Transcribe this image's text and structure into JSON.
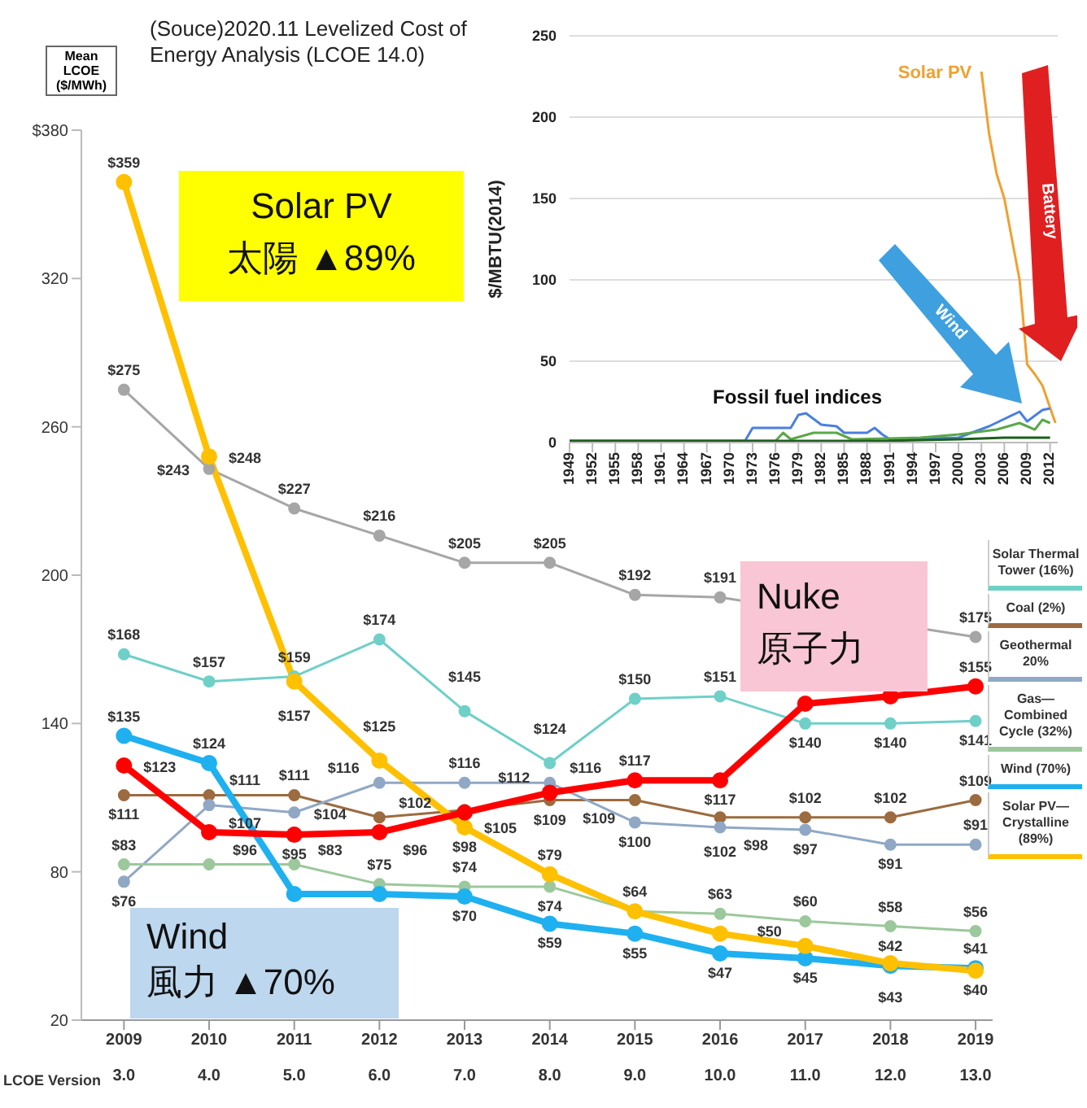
{
  "chart_data": [
    {
      "type": "line",
      "title": "(Souce)2020.11 Levelized Cost of Energy Analysis (LCOE 14.0)",
      "ylabel": "Mean LCOE ($/MWh)",
      "x2label": "LCOE Version",
      "x": [
        2009,
        2010,
        2011,
        2012,
        2013,
        2014,
        2015,
        2016,
        2017,
        2018,
        2019
      ],
      "xlim": [
        2008.5,
        2019.2
      ],
      "xticks": [
        2009,
        2010,
        2011,
        2012,
        2013,
        2014,
        2015,
        2016,
        2017,
        2018,
        2019
      ],
      "x2lim": [
        2.5,
        13.2
      ],
      "x2ticks": [
        {
          "value": 3,
          "label": "3.0"
        },
        {
          "value": 4,
          "label": "4.0"
        },
        {
          "value": 5,
          "label": "5.0"
        },
        {
          "value": 6,
          "label": "6.0"
        },
        {
          "value": 7,
          "label": "7.0"
        },
        {
          "value": 8,
          "label": "8.0"
        },
        {
          "value": 9,
          "label": "9.0"
        },
        {
          "value": 10,
          "label": "10.0"
        },
        {
          "value": 11,
          "label": "11.0"
        },
        {
          "value": 12,
          "label": "12.0"
        },
        {
          "value": 13,
          "label": "13.0"
        }
      ],
      "ylim": [
        20,
        380
      ],
      "yticks": [
        20,
        80,
        140,
        200,
        260,
        320,
        {
          "value": 380,
          "label": "$380"
        }
      ],
      "grid": false,
      "legend": "right",
      "marker": "circle",
      "annotations": [
        "Solar PV\n太陽 ▲89%",
        "Wind\n風力 ▲70%",
        "Nuke\n原子力"
      ],
      "series": [
        {
          "color": "#a6a6a6",
          "values": [
            275,
            243,
            227,
            216,
            205,
            205,
            192,
            191,
            null,
            null,
            175
          ],
          "value_labels": [
            "$275",
            "$243",
            "$227",
            "$216",
            "$205",
            "$205",
            "$192",
            "$191",
            null,
            null,
            "$175"
          ]
        },
        {
          "name": "Solar Thermal Tower (16%)",
          "color": "#6fd0c8",
          "values": [
            168,
            157,
            159,
            174,
            145,
            124,
            150,
            151,
            140,
            140,
            141
          ],
          "value_labels": [
            "$168",
            "$157",
            "$159",
            "$174",
            "$145",
            "$124",
            "$150",
            "$151",
            "$140",
            "$140",
            "$141"
          ]
        },
        {
          "name": "Coal (2%)",
          "color": "#9c6b3f",
          "values": [
            111,
            111,
            111,
            102,
            105,
            109,
            109,
            102,
            102,
            102,
            109
          ],
          "value_labels": [
            "$111",
            "$111",
            "$111",
            "$102",
            "$105",
            "$109",
            "$109",
            "$102",
            "$102",
            "$102",
            "$109"
          ]
        },
        {
          "name": "Geothermal 20%",
          "color": "#90a8c4",
          "values": [
            76,
            107,
            104,
            116,
            116,
            116,
            100,
            98,
            97,
            91,
            91
          ],
          "value_labels": [
            "$76",
            "$107",
            "$104",
            "$116",
            "$116",
            "$116",
            "$100",
            "$98",
            "$97",
            "$91",
            "$91"
          ]
        },
        {
          "name": "Gas—Combined Cycle (32%)",
          "color": "#9cc89c",
          "values": [
            83,
            83,
            83,
            75,
            74,
            74,
            64,
            63,
            60,
            58,
            56
          ],
          "value_labels": [
            "$83",
            null,
            "$83",
            "$75",
            "$74",
            "$74",
            "$64",
            "$63",
            "$60",
            "$58",
            "$56"
          ]
        },
        {
          "name": "Wind (70%)",
          "color": "#1fb0f0",
          "values": [
            135,
            124,
            71,
            71,
            70,
            59,
            55,
            47,
            45,
            42,
            41
          ],
          "value_labels": [
            "$135",
            "$124",
            null,
            null,
            "$70",
            "$59",
            "$55",
            "$47",
            "$45",
            "$42",
            "$41"
          ]
        },
        {
          "name": "Solar PV—Crystalline (89%)",
          "color": "#ffc000",
          "values": [
            359,
            248,
            157,
            125,
            98,
            79,
            64,
            55,
            50,
            43,
            40
          ],
          "value_labels": [
            "$359",
            "$248",
            "$157",
            "$125",
            "$98",
            "$79",
            null,
            null,
            "$50",
            "$43",
            "$40"
          ]
        },
        {
          "color": "#ff0000",
          "values": [
            123,
            96,
            95,
            96,
            104,
            112,
            117,
            117,
            148,
            151,
            155
          ],
          "value_labels": [
            "$123",
            "$96",
            "$95",
            "$96",
            null,
            "$112",
            "$117",
            "$117",
            null,
            null,
            "$155"
          ]
        }
      ]
    },
    {
      "type": "line",
      "ylabel": "$/MBTU(2014)",
      "xlim": [
        1949,
        2013
      ],
      "xticks": [
        1949,
        1952,
        1955,
        1958,
        1961,
        1964,
        1967,
        1970,
        1973,
        1976,
        1979,
        1982,
        1985,
        1988,
        1991,
        1994,
        1997,
        2000,
        2003,
        2006,
        2009,
        2012
      ],
      "ylim": [
        0,
        250
      ],
      "yticks": [
        0,
        50,
        100,
        150,
        200,
        250
      ],
      "grid": "y",
      "legend": false,
      "annotations": [
        "Fossil fuel indices",
        "Wind",
        "Battery"
      ],
      "series": [
        {
          "name": "Solar PV",
          "color": "#f0a030",
          "x": [
            2003,
            2004,
            2005,
            2006,
            2007,
            2008,
            2009,
            2010,
            2011,
            2012.7
          ],
          "values": [
            228,
            190,
            165,
            150,
            125,
            100,
            48,
            42,
            35,
            12
          ]
        },
        {
          "color": "#4a7fe0",
          "x": [
            1949,
            1972,
            1973,
            1978,
            1979,
            1980,
            1982,
            1984,
            1985,
            1988,
            1989,
            1990,
            1991,
            2000,
            2004,
            2008,
            2009,
            2011,
            2012
          ],
          "values": [
            1,
            1,
            9,
            9,
            17,
            18,
            11,
            10,
            6,
            6,
            9,
            5,
            2,
            3,
            10,
            19,
            13,
            20,
            21
          ]
        },
        {
          "color": "#5aa84a",
          "x": [
            1949,
            1976,
            1977,
            1978,
            1981,
            1984,
            1986,
            1995,
            2000,
            2005,
            2008,
            2010,
            2011,
            2012
          ],
          "values": [
            1,
            1,
            6,
            2,
            6,
            6,
            2,
            3,
            5,
            8,
            12,
            8,
            14,
            12
          ]
        },
        {
          "color": "#1e5e1e",
          "x": [
            1949,
            1990,
            2000,
            2006,
            2012
          ],
          "values": [
            1,
            1,
            2,
            3,
            3
          ]
        }
      ]
    }
  ]
}
